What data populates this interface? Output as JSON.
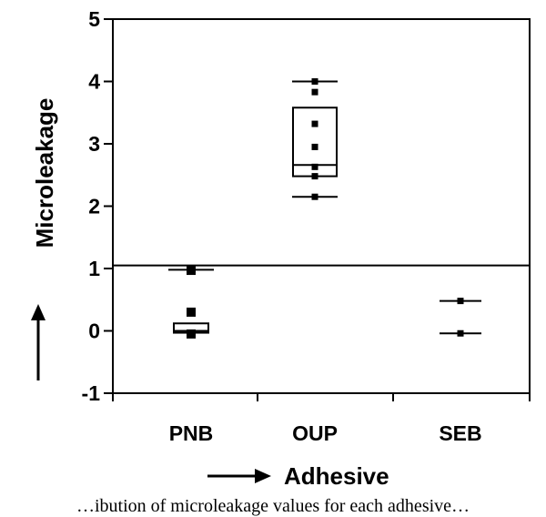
{
  "chart_data": {
    "type": "box",
    "xlabel": "Adhesive",
    "ylabel": "Microleakage",
    "ylim": [
      -1,
      5
    ],
    "yticks": [
      -1,
      0,
      1,
      2,
      3,
      4,
      5
    ],
    "categories": [
      "PNB",
      "OUP",
      "SEB"
    ],
    "reference_line_y": 1.05,
    "groups": [
      {
        "name": "PNB",
        "whisker_high": 0.98,
        "box": {
          "q1": -0.03,
          "median": 0.0,
          "q3": 0.12
        },
        "points": [
          0.97,
          0.3,
          -0.05
        ]
      },
      {
        "name": "OUP",
        "whisker_low": 2.15,
        "whisker_high": 4.0,
        "box": {
          "q1": 2.48,
          "median": 2.66,
          "q3": 3.58
        },
        "points": [
          4.0,
          3.83,
          3.32,
          2.95,
          2.63,
          2.48,
          2.15
        ]
      },
      {
        "name": "SEB",
        "whisker_low": -0.04,
        "whisker_high": 0.48,
        "points": [
          0.48,
          -0.04
        ]
      }
    ]
  },
  "caption": "…ibution of microleakage values for each adhesive…"
}
